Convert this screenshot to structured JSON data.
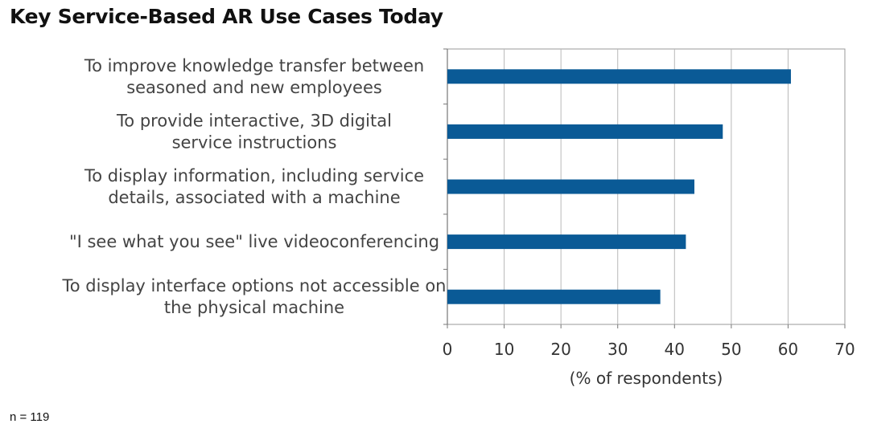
{
  "chart_data": {
    "type": "bar",
    "orientation": "horizontal",
    "title": "Key Service-Based AR Use Cases Today",
    "categories": [
      [
        "To improve knowledge transfer between",
        "seasoned and new employees"
      ],
      [
        "To provide interactive, 3D digital",
        "service instructions"
      ],
      [
        "To display information, including service",
        "details, associated with a machine"
      ],
      [
        "\"I see what you see\" live videoconferencing"
      ],
      [
        "To display interface options not accessible on",
        "the physical machine"
      ]
    ],
    "values": [
      60.5,
      48.5,
      43.5,
      42,
      37.5
    ],
    "xlabel": "(% of respondents)",
    "ylabel": "",
    "xlim": [
      0,
      70
    ],
    "xticks": [
      "0",
      "10",
      "20",
      "30",
      "40",
      "50",
      "60",
      "70"
    ],
    "grid": "vertical",
    "bar_color": "#0a5a96"
  },
  "footnote": "n = 119"
}
